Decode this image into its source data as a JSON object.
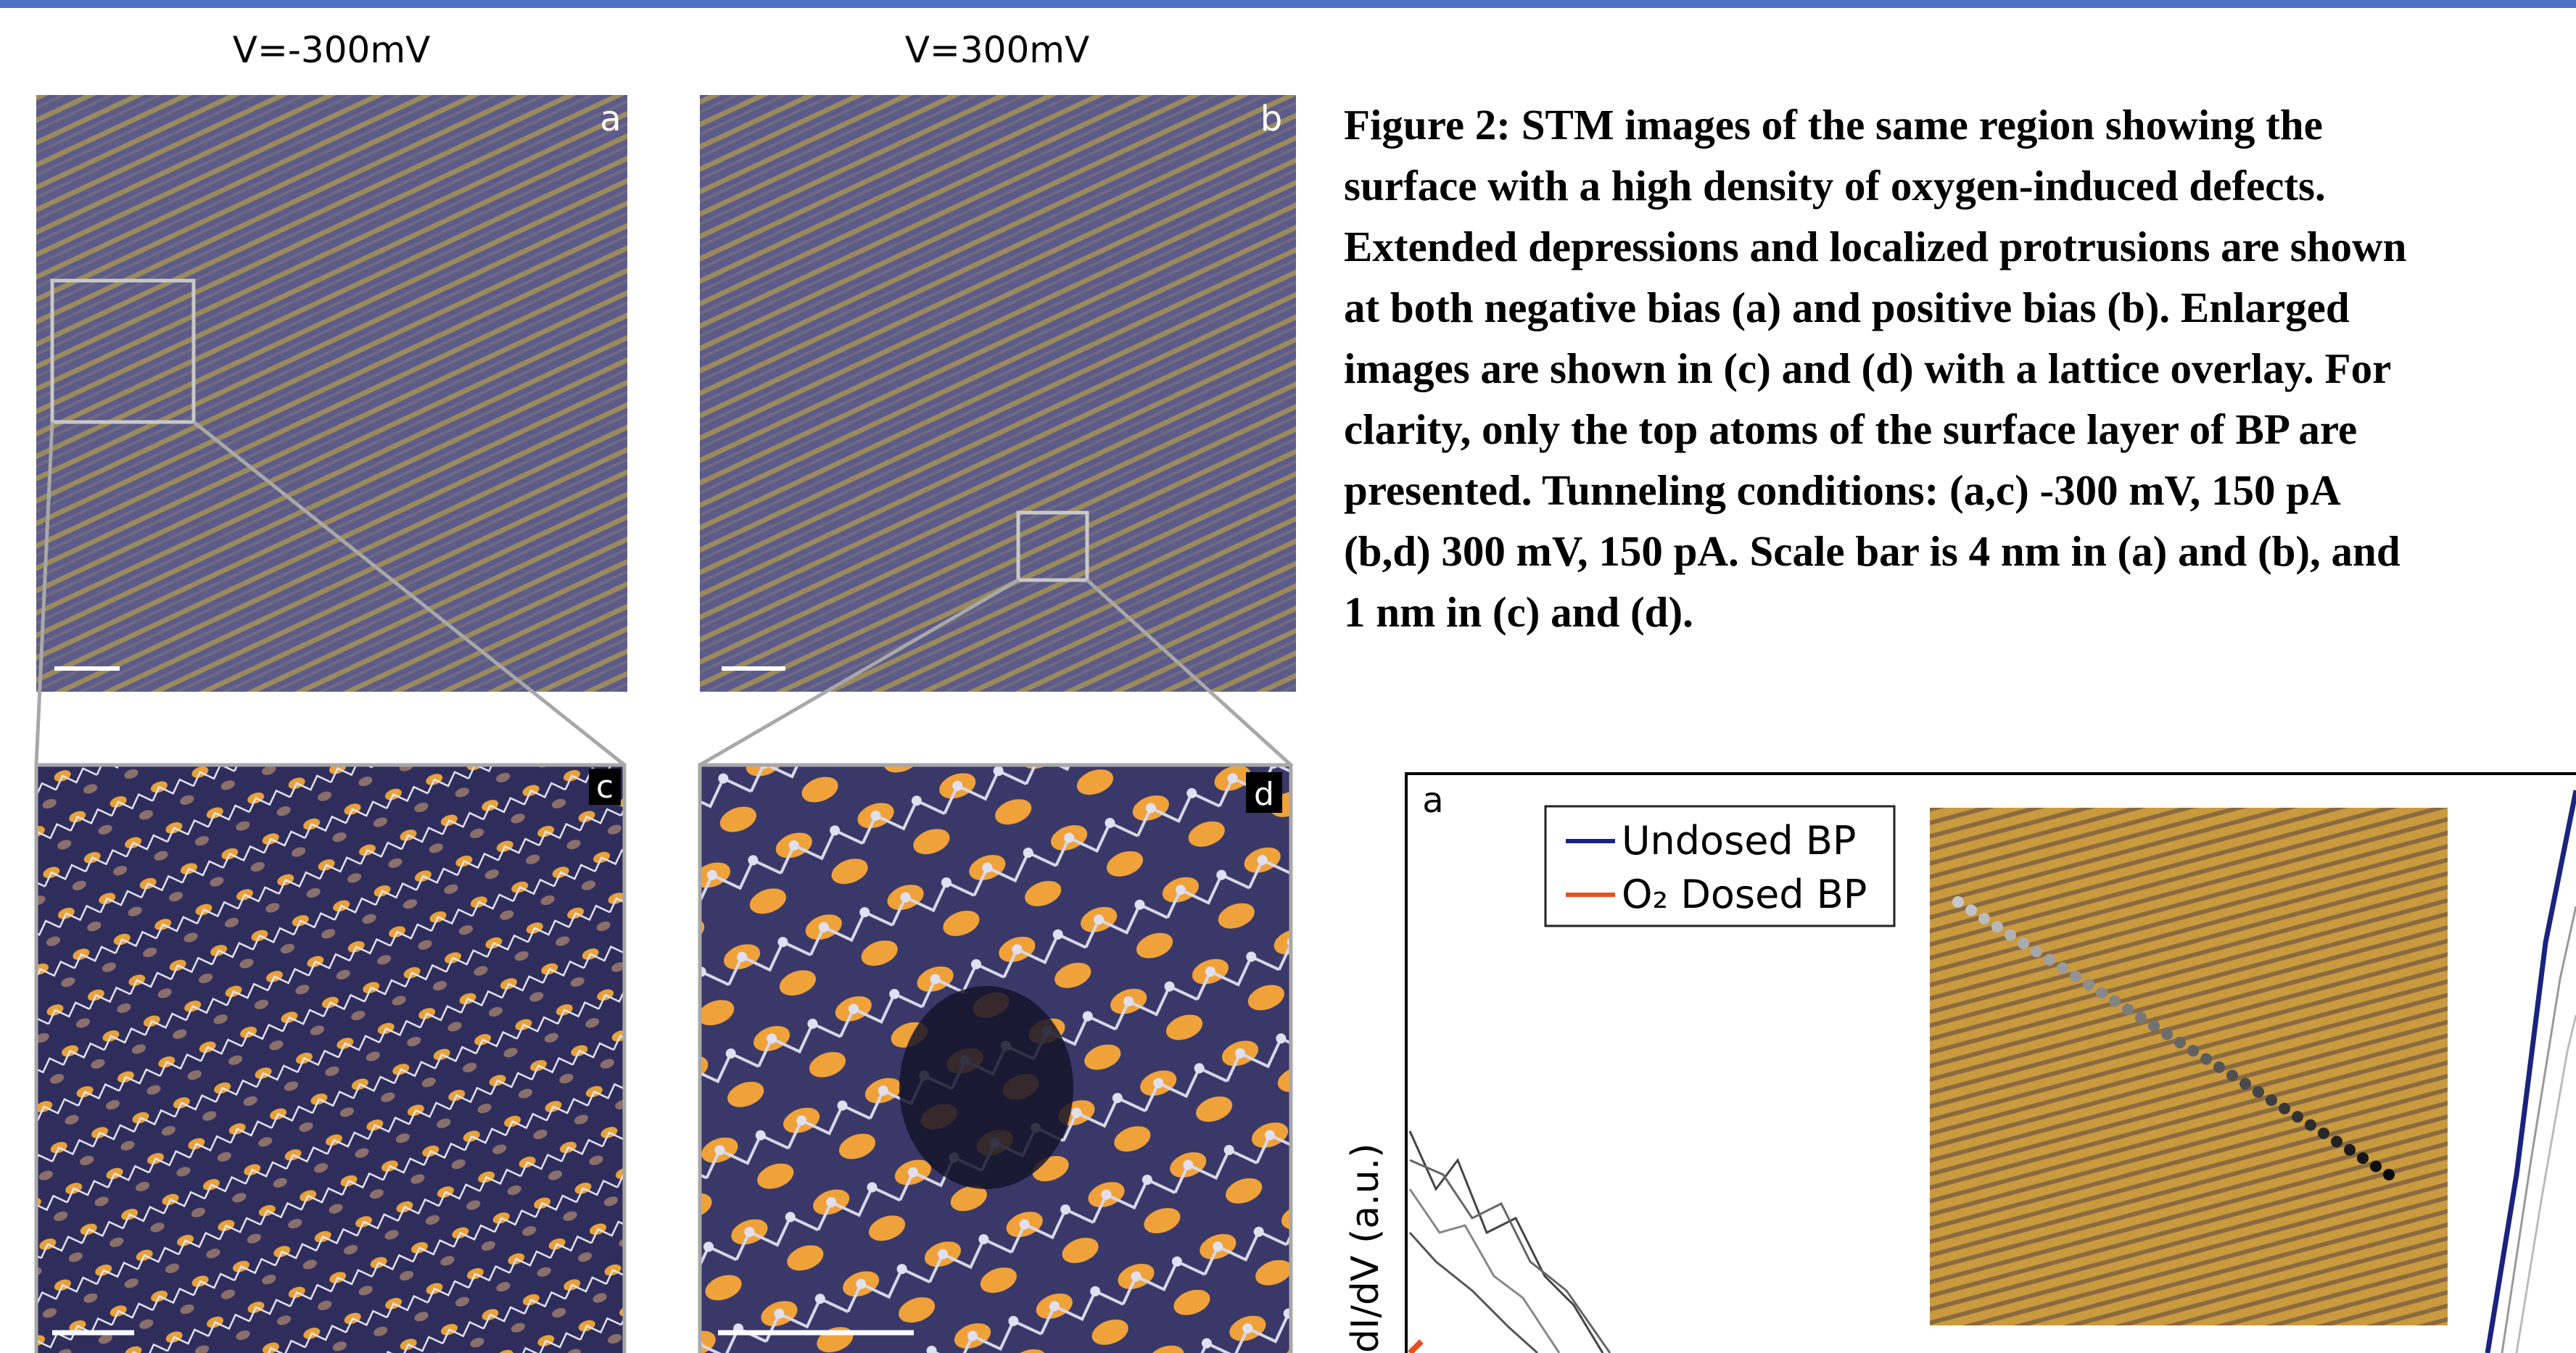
{
  "bias_labels": [
    "V=-300mV",
    "V=300mV"
  ],
  "panels": [
    {
      "label": "a"
    },
    {
      "label": "b"
    },
    {
      "label": "c"
    },
    {
      "label": "d"
    }
  ],
  "caption_lines": [
    "Figure 2: STM images of the same region showing the",
    "surface with a high density of oxygen-induced defects.",
    "Extended depressions and localized protrusions are shown",
    "at both negative bias (a) and positive bias (b). Enlarged",
    "images are shown in (c) and (d) with a lattice overlay. For",
    "clarity, only the top atoms of the surface layer of BP are",
    "presented. Tunneling conditions: (a,c) -300 mV, 150 pA",
    "(b,d) 300 mV, 150 pA. Scale bar is 4 nm in (a) and (b), and",
    "1 nm in (c) and (d)."
  ],
  "plot": {
    "panel_label": "a",
    "legend": [
      "Undosed BP",
      "O₂ Dosed BP"
    ],
    "y_label": "dI/dV (a.u.)"
  }
}
